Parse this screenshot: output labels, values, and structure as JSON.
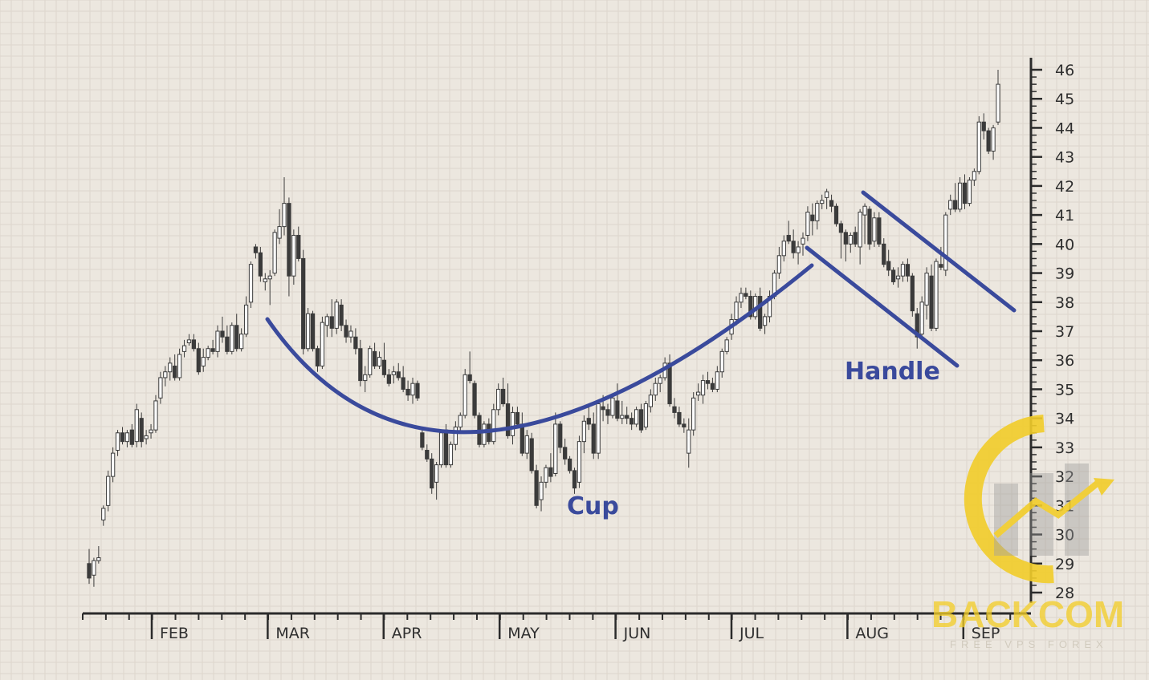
{
  "chart_data": {
    "type": "candlestick",
    "y_axis": {
      "side": "right",
      "range": [
        28,
        46
      ],
      "ticks": [
        28,
        29,
        30,
        31,
        32,
        33,
        34,
        35,
        36,
        37,
        38,
        39,
        40,
        41,
        42,
        43,
        44,
        45,
        46
      ]
    },
    "x_axis": {
      "labels": [
        "FEB",
        "MAR",
        "APR",
        "MAY",
        "JUN",
        "JUL",
        "AUG",
        "SEP"
      ]
    },
    "grid": true,
    "annotations": [
      {
        "label": "Cup",
        "shape": "arc"
      },
      {
        "label": "Handle",
        "shape": "parallel-channel"
      }
    ],
    "candles": [
      [
        29.0,
        29.5,
        28.3,
        28.5
      ],
      [
        28.6,
        29.2,
        28.2,
        29.1
      ],
      [
        29.1,
        29.6,
        29.0,
        29.2
      ],
      [
        30.5,
        31.0,
        30.3,
        30.9
      ],
      [
        31.0,
        32.2,
        30.8,
        32.0
      ],
      [
        32.0,
        33.0,
        31.8,
        32.8
      ],
      [
        32.9,
        33.6,
        32.7,
        33.5
      ],
      [
        33.5,
        33.7,
        33.1,
        33.2
      ],
      [
        33.2,
        33.6,
        33.0,
        33.5
      ],
      [
        33.6,
        33.8,
        33.0,
        33.1
      ],
      [
        33.2,
        34.5,
        33.0,
        34.3
      ],
      [
        34.0,
        34.2,
        33.0,
        33.2
      ],
      [
        33.3,
        33.6,
        33.1,
        33.4
      ],
      [
        33.5,
        33.8,
        33.3,
        33.6
      ],
      [
        33.6,
        34.8,
        33.5,
        34.6
      ],
      [
        34.7,
        35.6,
        34.5,
        35.4
      ],
      [
        35.4,
        35.8,
        35.1,
        35.6
      ],
      [
        35.6,
        36.1,
        35.3,
        35.9
      ],
      [
        35.8,
        36.2,
        35.3,
        35.4
      ],
      [
        35.4,
        36.4,
        35.3,
        36.2
      ],
      [
        36.3,
        36.7,
        36.1,
        36.5
      ],
      [
        36.6,
        36.9,
        36.5,
        36.7
      ],
      [
        36.7,
        36.9,
        36.3,
        36.4
      ],
      [
        36.4,
        36.6,
        35.5,
        35.6
      ],
      [
        35.8,
        36.4,
        35.6,
        36.1
      ],
      [
        36.1,
        36.5,
        36.0,
        36.4
      ],
      [
        36.4,
        36.7,
        36.2,
        36.3
      ],
      [
        36.3,
        37.2,
        36.1,
        37.0
      ],
      [
        37.0,
        37.5,
        36.6,
        36.8
      ],
      [
        36.8,
        37.2,
        36.2,
        36.3
      ],
      [
        36.3,
        37.3,
        36.2,
        37.2
      ],
      [
        37.2,
        37.6,
        36.3,
        36.4
      ],
      [
        36.4,
        37.1,
        36.3,
        36.9
      ],
      [
        36.9,
        38.2,
        36.8,
        37.9
      ],
      [
        38.0,
        39.4,
        37.8,
        39.3
      ],
      [
        39.9,
        40.0,
        39.5,
        39.7
      ],
      [
        39.7,
        39.9,
        38.7,
        38.9
      ],
      [
        38.7,
        39.0,
        38.4,
        38.8
      ],
      [
        38.8,
        39.1,
        37.9,
        38.9
      ],
      [
        39.0,
        40.5,
        38.9,
        40.4
      ],
      [
        40.2,
        41.2,
        40.0,
        40.6
      ],
      [
        40.6,
        42.3,
        40.3,
        41.4
      ],
      [
        41.4,
        41.6,
        38.2,
        38.9
      ],
      [
        38.9,
        40.5,
        38.6,
        40.3
      ],
      [
        40.3,
        40.6,
        39.4,
        39.5
      ],
      [
        39.5,
        39.8,
        36.2,
        36.4
      ],
      [
        36.4,
        37.8,
        36.3,
        37.6
      ],
      [
        37.6,
        37.7,
        36.3,
        36.4
      ],
      [
        36.4,
        36.5,
        35.6,
        35.8
      ],
      [
        35.8,
        37.5,
        35.7,
        37.3
      ],
      [
        37.2,
        37.6,
        36.8,
        37.5
      ],
      [
        37.5,
        38.1,
        36.8,
        37.1
      ],
      [
        37.1,
        38.1,
        36.9,
        38.0
      ],
      [
        37.9,
        38.1,
        37.0,
        37.2
      ],
      [
        37.2,
        37.4,
        36.6,
        36.8
      ],
      [
        36.8,
        37.2,
        36.6,
        37.0
      ],
      [
        36.8,
        37.1,
        36.2,
        36.4
      ],
      [
        36.4,
        36.7,
        35.1,
        35.3
      ],
      [
        35.3,
        35.8,
        34.9,
        35.5
      ],
      [
        35.5,
        36.5,
        35.4,
        36.4
      ],
      [
        36.3,
        36.6,
        35.7,
        35.8
      ],
      [
        35.8,
        36.3,
        35.7,
        36.1
      ],
      [
        36.0,
        36.6,
        35.4,
        35.5
      ],
      [
        35.5,
        35.7,
        35.1,
        35.2
      ],
      [
        35.5,
        35.8,
        35.2,
        35.6
      ],
      [
        35.6,
        35.9,
        35.3,
        35.4
      ],
      [
        35.4,
        35.8,
        34.9,
        35.0
      ],
      [
        35.0,
        35.3,
        34.6,
        34.8
      ],
      [
        34.8,
        35.4,
        34.5,
        35.2
      ],
      [
        35.2,
        35.3,
        34.6,
        34.7
      ],
      [
        33.5,
        33.6,
        32.9,
        33.0
      ],
      [
        32.9,
        33.1,
        32.5,
        32.6
      ],
      [
        32.6,
        32.8,
        31.4,
        31.6
      ],
      [
        31.8,
        32.5,
        31.2,
        32.4
      ],
      [
        32.4,
        33.6,
        32.3,
        33.5
      ],
      [
        33.6,
        33.8,
        32.3,
        32.4
      ],
      [
        32.4,
        33.2,
        32.3,
        33.1
      ],
      [
        33.1,
        33.9,
        32.9,
        33.7
      ],
      [
        33.7,
        34.2,
        33.5,
        34.1
      ],
      [
        34.1,
        35.7,
        34.0,
        35.5
      ],
      [
        35.5,
        36.3,
        35.2,
        35.3
      ],
      [
        35.2,
        35.3,
        34.0,
        34.1
      ],
      [
        34.1,
        34.2,
        33.0,
        33.1
      ],
      [
        33.1,
        33.9,
        33.0,
        33.8
      ],
      [
        33.8,
        34.0,
        33.1,
        33.2
      ],
      [
        33.2,
        34.5,
        33.1,
        34.3
      ],
      [
        34.3,
        35.2,
        34.1,
        35.0
      ],
      [
        35.0,
        35.4,
        34.4,
        34.5
      ],
      [
        34.5,
        35.2,
        33.3,
        33.4
      ],
      [
        33.4,
        34.4,
        33.1,
        34.2
      ],
      [
        34.2,
        34.4,
        33.7,
        33.8
      ],
      [
        33.8,
        34.2,
        32.7,
        32.8
      ],
      [
        32.8,
        33.6,
        32.6,
        33.4
      ],
      [
        33.3,
        33.5,
        32.1,
        32.2
      ],
      [
        32.2,
        32.4,
        30.9,
        31.0
      ],
      [
        31.2,
        32.0,
        30.8,
        31.8
      ],
      [
        31.8,
        32.4,
        31.6,
        32.3
      ],
      [
        32.3,
        32.8,
        31.8,
        32.0
      ],
      [
        32.1,
        34.2,
        32.0,
        33.8
      ],
      [
        33.8,
        33.9,
        32.8,
        33.0
      ],
      [
        33.0,
        33.3,
        32.4,
        32.6
      ],
      [
        32.6,
        32.7,
        32.1,
        32.2
      ],
      [
        32.2,
        32.3,
        31.4,
        31.6
      ],
      [
        31.8,
        33.4,
        31.6,
        33.2
      ],
      [
        33.2,
        34.1,
        32.8,
        33.9
      ],
      [
        34.0,
        34.5,
        33.6,
        33.8
      ],
      [
        33.8,
        34.2,
        32.6,
        32.8
      ],
      [
        32.8,
        34.6,
        32.6,
        34.5
      ],
      [
        34.4,
        34.8,
        33.9,
        34.3
      ],
      [
        34.3,
        34.5,
        33.8,
        34.1
      ],
      [
        34.1,
        34.8,
        34.0,
        34.7
      ],
      [
        34.6,
        35.2,
        33.9,
        34.0
      ],
      [
        34.0,
        34.6,
        33.8,
        34.1
      ],
      [
        34.1,
        34.4,
        33.8,
        34.0
      ],
      [
        34.0,
        34.2,
        33.6,
        33.8
      ],
      [
        33.8,
        34.4,
        33.7,
        34.3
      ],
      [
        34.3,
        34.5,
        33.5,
        33.6
      ],
      [
        33.7,
        34.6,
        33.6,
        34.5
      ],
      [
        34.4,
        35.0,
        34.2,
        34.8
      ],
      [
        34.8,
        35.4,
        34.6,
        35.2
      ],
      [
        35.2,
        35.5,
        34.9,
        35.4
      ],
      [
        35.4,
        36.1,
        35.3,
        35.9
      ],
      [
        35.9,
        36.2,
        34.4,
        34.5
      ],
      [
        34.4,
        34.7,
        34.0,
        34.2
      ],
      [
        34.2,
        34.4,
        33.7,
        33.8
      ],
      [
        33.8,
        34.0,
        33.5,
        33.7
      ],
      [
        32.8,
        34.0,
        32.3,
        33.6
      ],
      [
        33.6,
        34.9,
        33.4,
        34.7
      ],
      [
        34.8,
        35.2,
        34.6,
        34.9
      ],
      [
        34.8,
        35.5,
        34.5,
        35.3
      ],
      [
        35.3,
        35.6,
        35.0,
        35.2
      ],
      [
        35.2,
        35.4,
        34.9,
        35.0
      ],
      [
        35.0,
        35.8,
        34.9,
        35.6
      ],
      [
        35.6,
        36.4,
        35.4,
        36.3
      ],
      [
        36.3,
        36.8,
        36.2,
        36.7
      ],
      [
        36.9,
        37.6,
        36.7,
        37.4
      ],
      [
        37.4,
        38.2,
        37.2,
        38.0
      ],
      [
        38.0,
        38.5,
        37.8,
        38.3
      ],
      [
        38.3,
        38.5,
        38.1,
        38.2
      ],
      [
        38.2,
        38.4,
        37.4,
        37.5
      ],
      [
        37.5,
        38.3,
        37.4,
        38.2
      ],
      [
        38.2,
        38.5,
        37.0,
        37.1
      ],
      [
        37.2,
        37.6,
        36.9,
        37.5
      ],
      [
        37.5,
        38.4,
        37.3,
        38.2
      ],
      [
        38.2,
        39.1,
        38.1,
        39.0
      ],
      [
        39.0,
        39.9,
        38.8,
        39.6
      ],
      [
        39.6,
        40.3,
        39.4,
        40.1
      ],
      [
        40.3,
        40.8,
        40.0,
        40.1
      ],
      [
        40.1,
        40.5,
        39.5,
        39.7
      ],
      [
        39.7,
        40.1,
        39.3,
        39.9
      ],
      [
        40.0,
        40.4,
        39.6,
        40.2
      ],
      [
        40.3,
        41.3,
        40.1,
        41.1
      ],
      [
        41.0,
        41.4,
        40.3,
        40.8
      ],
      [
        40.8,
        41.5,
        40.5,
        41.4
      ],
      [
        41.4,
        41.7,
        41.2,
        41.5
      ],
      [
        41.6,
        41.9,
        41.2,
        41.8
      ],
      [
        41.5,
        41.7,
        41.1,
        41.3
      ],
      [
        41.3,
        41.4,
        40.6,
        40.7
      ],
      [
        40.7,
        40.8,
        39.5,
        40.4
      ],
      [
        40.4,
        40.5,
        39.4,
        40.0
      ],
      [
        40.0,
        40.4,
        39.7,
        40.3
      ],
      [
        40.4,
        40.6,
        39.9,
        40.0
      ],
      [
        39.9,
        41.2,
        39.3,
        41.1
      ],
      [
        41.0,
        41.4,
        40.0,
        41.3
      ],
      [
        41.2,
        41.3,
        39.8,
        40.0
      ],
      [
        40.1,
        41.1,
        39.9,
        40.9
      ],
      [
        40.9,
        41.1,
        39.9,
        40.0
      ],
      [
        40.0,
        40.2,
        39.2,
        39.3
      ],
      [
        39.4,
        39.8,
        38.9,
        39.1
      ],
      [
        39.1,
        39.2,
        38.6,
        38.7
      ],
      [
        38.8,
        39.2,
        38.5,
        38.9
      ],
      [
        38.9,
        39.4,
        38.7,
        39.3
      ],
      [
        39.3,
        39.5,
        38.7,
        38.9
      ],
      [
        38.9,
        39.0,
        37.5,
        37.7
      ],
      [
        37.6,
        37.8,
        36.4,
        36.8
      ],
      [
        36.9,
        38.2,
        36.7,
        38.0
      ],
      [
        37.9,
        39.2,
        37.4,
        39.0
      ],
      [
        38.9,
        39.3,
        37.0,
        37.1
      ],
      [
        37.1,
        39.5,
        37.0,
        39.4
      ],
      [
        39.3,
        39.9,
        39.1,
        39.2
      ],
      [
        39.1,
        41.1,
        38.9,
        41.0
      ],
      [
        41.2,
        41.7,
        41.0,
        41.5
      ],
      [
        41.5,
        42.1,
        41.1,
        41.2
      ],
      [
        41.2,
        42.3,
        41.1,
        42.1
      ],
      [
        42.1,
        42.4,
        41.2,
        41.4
      ],
      [
        41.4,
        42.3,
        41.3,
        42.2
      ],
      [
        42.2,
        42.6,
        42.0,
        42.5
      ],
      [
        42.5,
        44.4,
        42.4,
        44.2
      ],
      [
        44.2,
        44.5,
        43.6,
        43.9
      ],
      [
        43.9,
        44.0,
        43.1,
        43.2
      ],
      [
        43.2,
        44.1,
        42.9,
        44.0
      ],
      [
        44.2,
        46.0,
        44.1,
        45.5
      ]
    ]
  },
  "annotation_labels": {
    "cup": "Cup",
    "handle": "Handle"
  },
  "watermark": {
    "text": "BACKCOM",
    "subtext": "FREE VPS FOREX"
  },
  "colors": {
    "background": "#ece7df",
    "grid": "#ddd6cc",
    "axis": "#2b2b2b",
    "candle_up_fill": "#ffffff",
    "candle_down_fill": "#3b3b3b",
    "candle_outline": "#3b3b3b",
    "annotation": "#3a4a9c",
    "watermark_gold": "#f2cd2a",
    "watermark_gray": "#9a9a9a"
  }
}
